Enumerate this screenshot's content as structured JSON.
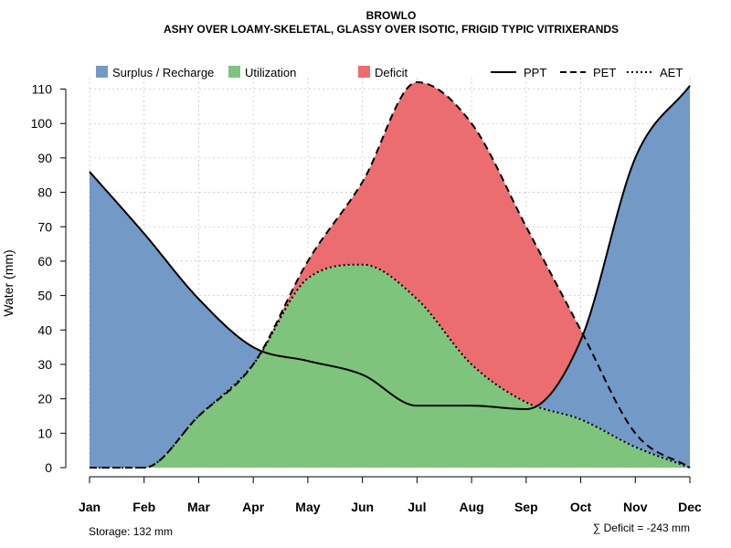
{
  "chart_data": {
    "type": "area",
    "title": "BROWLO",
    "subtitle": "ASHY OVER LOAMY-SKELETAL, GLASSY OVER ISOTIC, FRIGID TYPIC VITRIXERANDS",
    "xlabel": "",
    "ylabel": "Water (mm)",
    "categories": [
      "Jan",
      "Feb",
      "Mar",
      "Apr",
      "May",
      "Jun",
      "Jul",
      "Aug",
      "Sep",
      "Oct",
      "Nov",
      "Dec"
    ],
    "ylim": [
      0,
      112
    ],
    "yticks": [
      0,
      10,
      20,
      30,
      40,
      50,
      60,
      70,
      80,
      90,
      100,
      110
    ],
    "grid": true,
    "series": [
      {
        "name": "PPT",
        "values": [
          86,
          68,
          49,
          35,
          31,
          27,
          18,
          18,
          17,
          37,
          90,
          111
        ]
      },
      {
        "name": "PET",
        "values": [
          0,
          0,
          15,
          30,
          60,
          83,
          112,
          100,
          70,
          40,
          10,
          0
        ]
      },
      {
        "name": "AET",
        "values": [
          0,
          0,
          15,
          30,
          55,
          59,
          49,
          30,
          19,
          14,
          6,
          0
        ]
      }
    ],
    "legend": {
      "position": "top",
      "areas": [
        {
          "label": "Surplus / Recharge",
          "color": "#7399c6"
        },
        {
          "label": "Utilization",
          "color": "#7fc47c"
        },
        {
          "label": "Deficit",
          "color": "#eb6d6f"
        }
      ],
      "lines": [
        {
          "label": "PPT",
          "style": "solid"
        },
        {
          "label": "PET",
          "style": "dashed"
        },
        {
          "label": "AET",
          "style": "dotted"
        }
      ]
    },
    "annotations": {
      "storage": "Storage: 132 mm",
      "deficit": "∑ Deficit = -243 mm"
    }
  }
}
